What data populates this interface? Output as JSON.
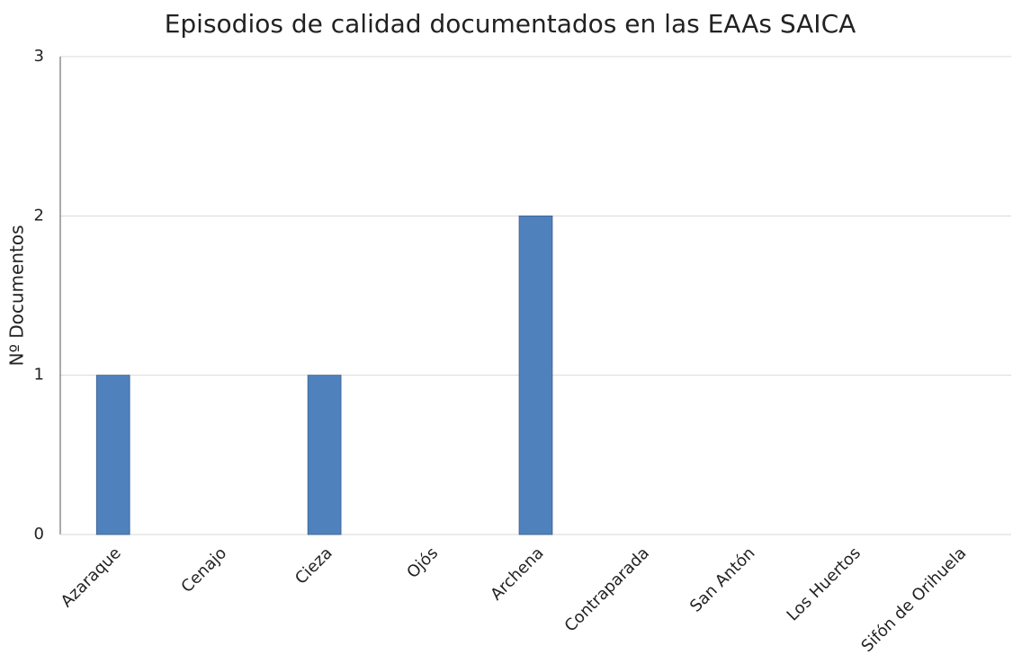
{
  "chart_data": {
    "type": "bar",
    "title": "Episodios de calidad documentados en las EAAs SAICA",
    "y_label": "Nº Documentos",
    "categories": [
      "Azaraque",
      "Cenajo",
      "Cieza",
      "Ojós",
      "Archena",
      "Contraparada",
      "San Antón",
      "Los Huertos",
      "Sifón de Orihuela"
    ],
    "values": [
      1,
      0,
      1,
      0,
      2,
      0,
      0,
      0,
      0
    ],
    "color": "#4f81bd",
    "ylim": [
      0,
      3
    ],
    "yticks": [
      0,
      1,
      2,
      3
    ],
    "grid": true
  }
}
